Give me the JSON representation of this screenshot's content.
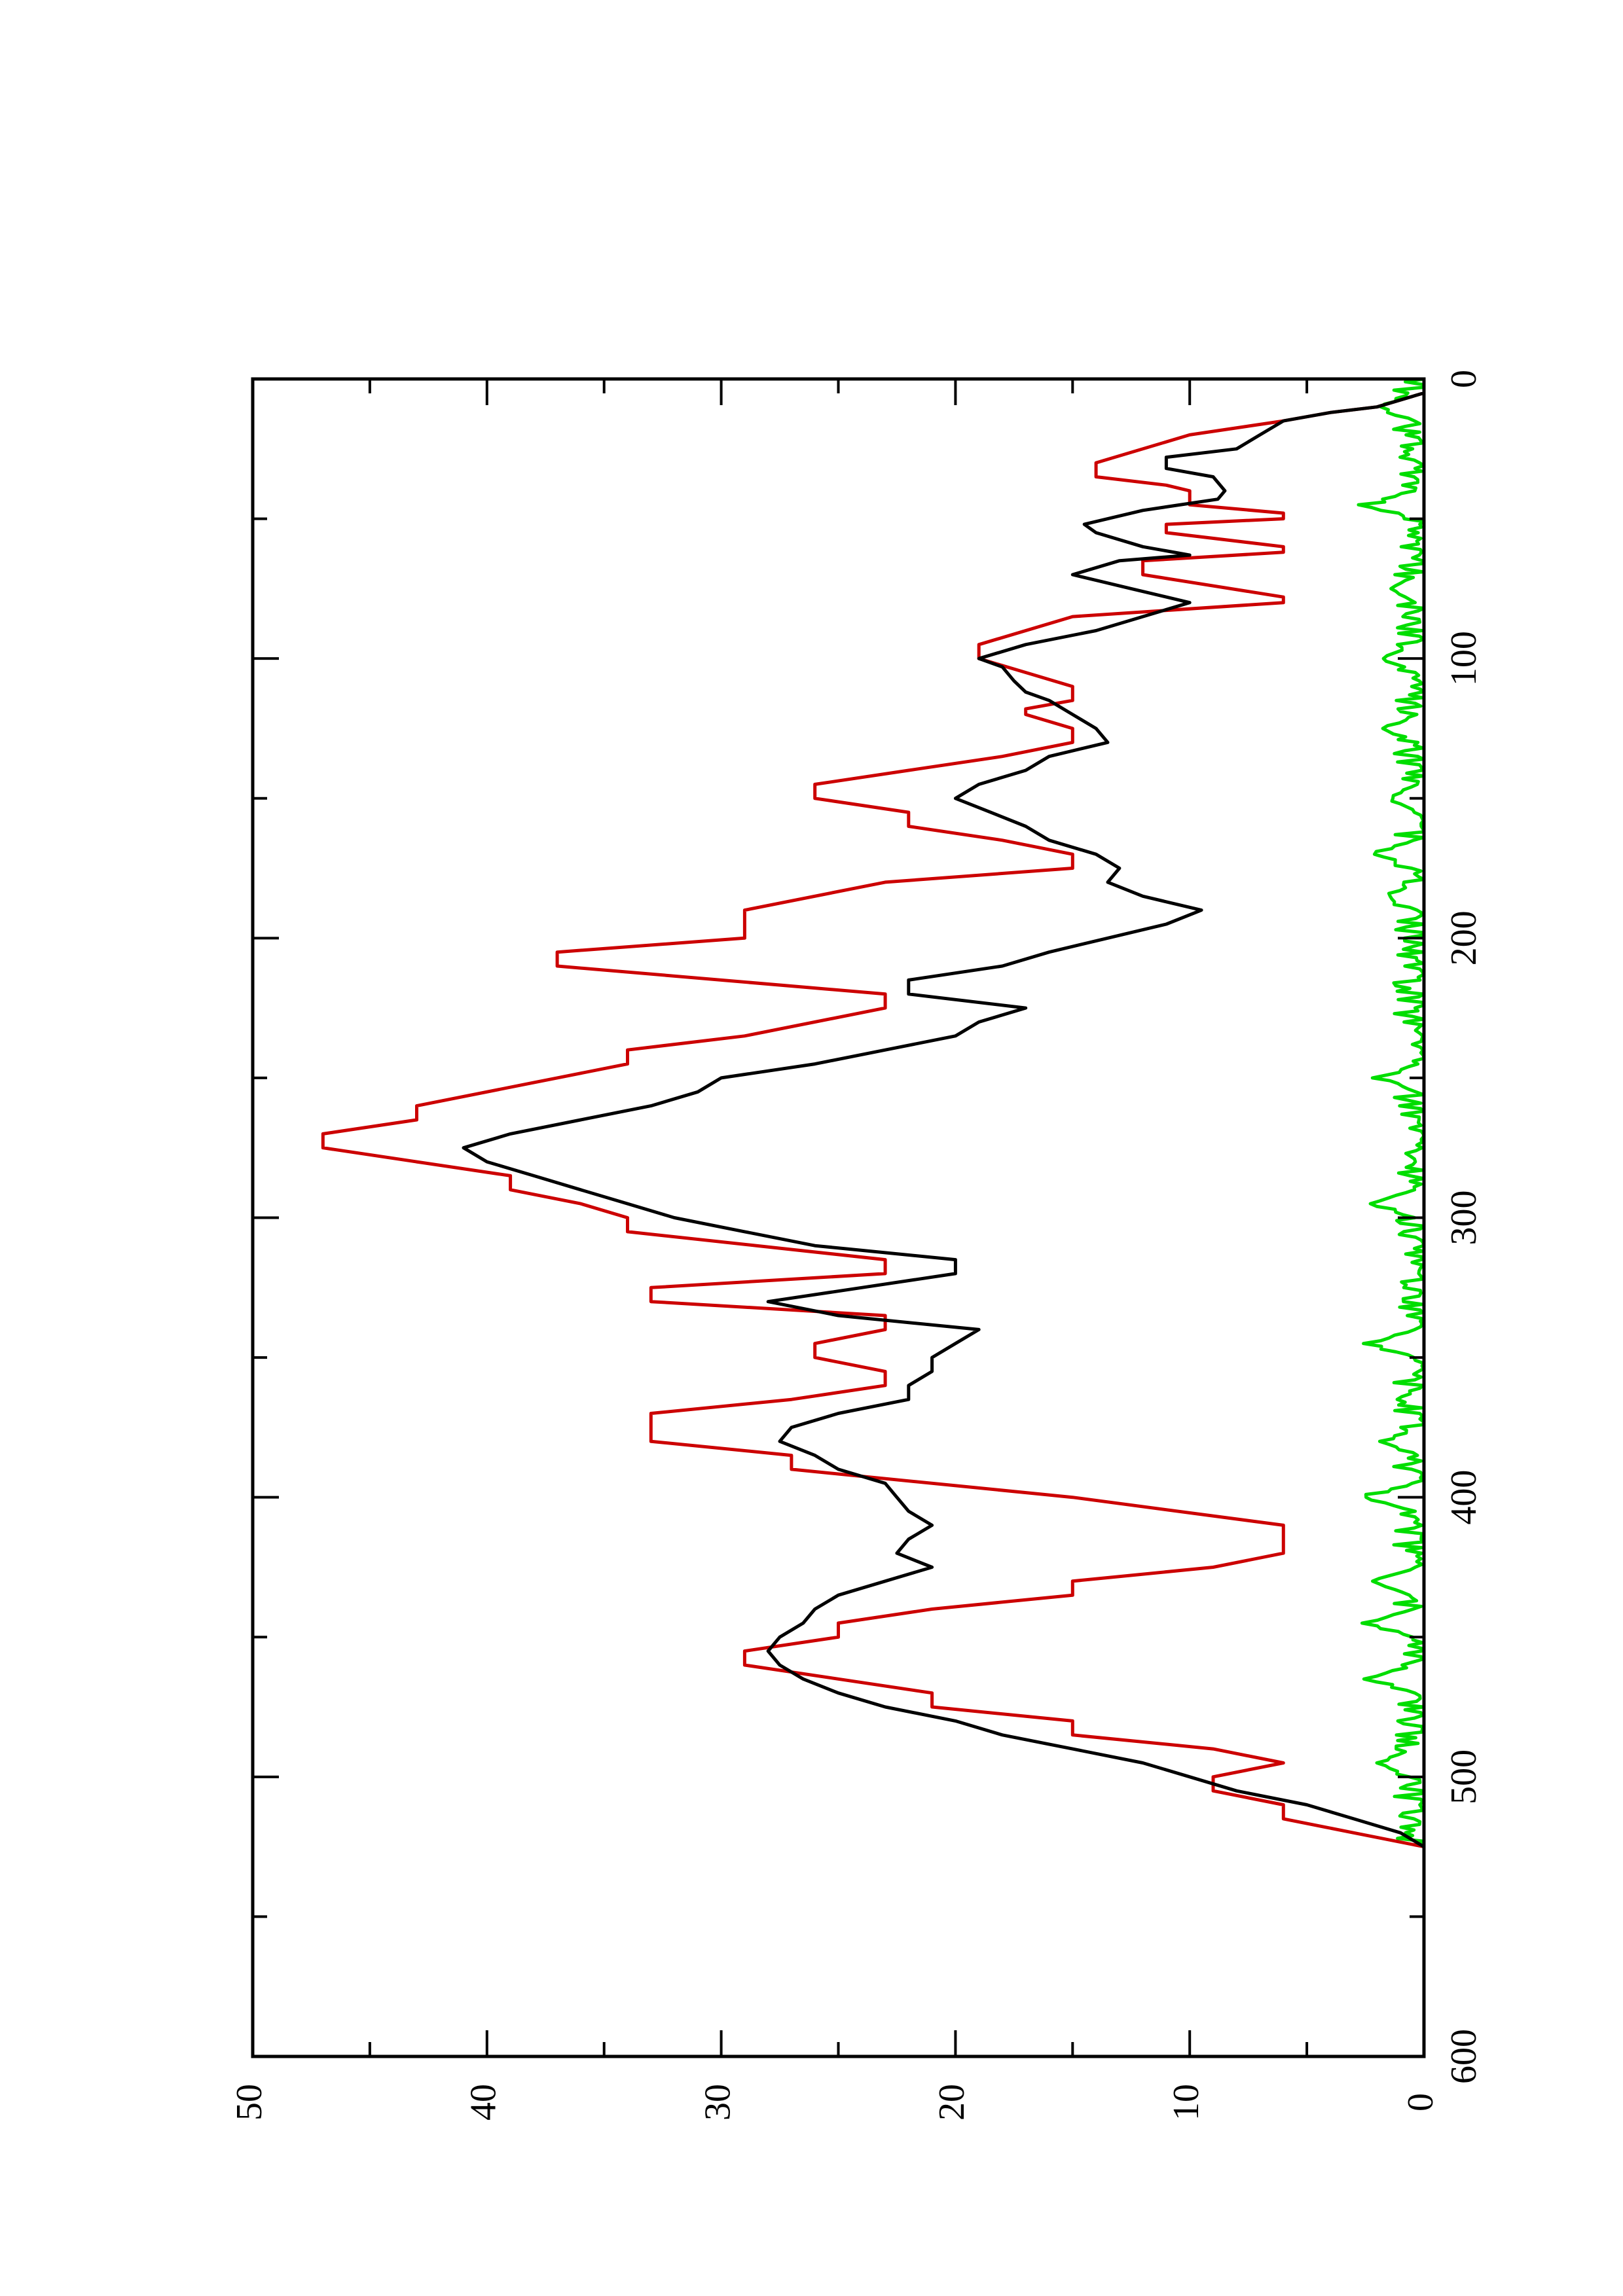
{
  "chart_data": {
    "type": "line",
    "title": "",
    "xlabel": "",
    "ylabel": "",
    "orientation": "rotated-90-clockwise",
    "xlim": [
      0,
      600
    ],
    "ylim": [
      0,
      50
    ],
    "x_ticks": [
      0,
      100,
      200,
      300,
      400,
      500,
      600
    ],
    "x_minor_ticks": [
      50,
      150,
      250,
      350,
      450,
      550
    ],
    "y_ticks": [
      0,
      10,
      20,
      30,
      40,
      50
    ],
    "y_minor_ticks": [
      5,
      15,
      25,
      35,
      45
    ],
    "grid": false,
    "legend": "none",
    "series": [
      {
        "color": "#cc0000",
        "step": true,
        "points": [
          [
            0,
            0
          ],
          [
            5,
            0
          ],
          [
            10,
            2
          ],
          [
            12,
            4
          ],
          [
            15,
            6
          ],
          [
            20,
            10
          ],
          [
            30,
            14
          ],
          [
            35,
            14
          ],
          [
            38,
            11
          ],
          [
            40,
            10
          ],
          [
            45,
            10
          ],
          [
            48,
            6
          ],
          [
            50,
            6
          ],
          [
            52,
            11
          ],
          [
            55,
            11
          ],
          [
            60,
            6
          ],
          [
            62,
            6
          ],
          [
            65,
            12
          ],
          [
            70,
            12
          ],
          [
            78,
            6
          ],
          [
            80,
            6
          ],
          [
            85,
            15
          ],
          [
            95,
            19
          ],
          [
            100,
            19
          ],
          [
            105,
            17
          ],
          [
            110,
            15
          ],
          [
            115,
            15
          ],
          [
            118,
            17
          ],
          [
            120,
            17
          ],
          [
            125,
            15
          ],
          [
            130,
            15
          ],
          [
            135,
            18
          ],
          [
            140,
            22
          ],
          [
            145,
            26
          ],
          [
            150,
            26
          ],
          [
            155,
            22
          ],
          [
            160,
            22
          ],
          [
            165,
            18
          ],
          [
            170,
            15
          ],
          [
            175,
            15
          ],
          [
            180,
            23
          ],
          [
            190,
            29
          ],
          [
            200,
            29
          ],
          [
            205,
            37
          ],
          [
            210,
            37
          ],
          [
            220,
            23
          ],
          [
            225,
            23
          ],
          [
            235,
            29
          ],
          [
            240,
            34
          ],
          [
            245,
            34
          ],
          [
            250,
            37
          ],
          [
            260,
            43
          ],
          [
            265,
            43
          ],
          [
            270,
            47
          ],
          [
            275,
            47
          ],
          [
            280,
            43
          ],
          [
            285,
            39
          ],
          [
            290,
            39
          ],
          [
            295,
            36
          ],
          [
            300,
            34
          ],
          [
            305,
            34
          ],
          [
            315,
            23
          ],
          [
            320,
            23
          ],
          [
            325,
            33
          ],
          [
            330,
            33
          ],
          [
            335,
            23
          ],
          [
            340,
            23
          ],
          [
            345,
            26
          ],
          [
            350,
            26
          ],
          [
            355,
            23
          ],
          [
            360,
            23
          ],
          [
            365,
            27
          ],
          [
            370,
            33
          ],
          [
            380,
            33
          ],
          [
            385,
            27
          ],
          [
            390,
            27
          ],
          [
            400,
            15
          ],
          [
            410,
            6
          ],
          [
            420,
            6
          ],
          [
            425,
            9
          ],
          [
            430,
            15
          ],
          [
            435,
            15
          ],
          [
            440,
            21
          ],
          [
            445,
            25
          ],
          [
            450,
            25
          ],
          [
            455,
            29
          ],
          [
            460,
            29
          ],
          [
            465,
            25
          ],
          [
            470,
            21
          ],
          [
            475,
            21
          ],
          [
            480,
            15
          ],
          [
            485,
            15
          ],
          [
            490,
            9
          ],
          [
            495,
            6
          ],
          [
            500,
            9
          ],
          [
            505,
            9
          ],
          [
            510,
            6
          ],
          [
            515,
            6
          ],
          [
            520,
            3
          ],
          [
            525,
            0
          ]
        ]
      },
      {
        "color": "#000000",
        "step": false,
        "points": [
          [
            0,
            0
          ],
          [
            5,
            0
          ],
          [
            10,
            2
          ],
          [
            12,
            4
          ],
          [
            15,
            6
          ],
          [
            20,
            7
          ],
          [
            25,
            8
          ],
          [
            28,
            11
          ],
          [
            32,
            11
          ],
          [
            35,
            9
          ],
          [
            40,
            8.5
          ],
          [
            43,
            8.8
          ],
          [
            47,
            12
          ],
          [
            52,
            14.5
          ],
          [
            55,
            14
          ],
          [
            60,
            12
          ],
          [
            63,
            10
          ],
          [
            65,
            13
          ],
          [
            70,
            15
          ],
          [
            75,
            12.5
          ],
          [
            80,
            10
          ],
          [
            85,
            12
          ],
          [
            90,
            14
          ],
          [
            95,
            17
          ],
          [
            100,
            19
          ],
          [
            103,
            18
          ],
          [
            108,
            17.5
          ],
          [
            112,
            17
          ],
          [
            115,
            16
          ],
          [
            120,
            15
          ],
          [
            125,
            14
          ],
          [
            130,
            13.5
          ],
          [
            135,
            16
          ],
          [
            140,
            17
          ],
          [
            145,
            19
          ],
          [
            150,
            20
          ],
          [
            155,
            18.5
          ],
          [
            160,
            17
          ],
          [
            165,
            16
          ],
          [
            170,
            14
          ],
          [
            175,
            13
          ],
          [
            180,
            13.5
          ],
          [
            185,
            12
          ],
          [
            190,
            9.5
          ],
          [
            195,
            11
          ],
          [
            200,
            13.5
          ],
          [
            205,
            16
          ],
          [
            210,
            18
          ],
          [
            215,
            22
          ],
          [
            220,
            22
          ],
          [
            225,
            17
          ],
          [
            230,
            19
          ],
          [
            235,
            20
          ],
          [
            240,
            23
          ],
          [
            245,
            26
          ],
          [
            250,
            30
          ],
          [
            255,
            31
          ],
          [
            260,
            33
          ],
          [
            265,
            36
          ],
          [
            270,
            39
          ],
          [
            275,
            41
          ],
          [
            280,
            40
          ],
          [
            285,
            38
          ],
          [
            290,
            36
          ],
          [
            295,
            34
          ],
          [
            300,
            32
          ],
          [
            305,
            29
          ],
          [
            310,
            26
          ],
          [
            315,
            20
          ],
          [
            320,
            20
          ],
          [
            325,
            24
          ],
          [
            330,
            28
          ],
          [
            335,
            25
          ],
          [
            340,
            19
          ],
          [
            345,
            20
          ],
          [
            350,
            21
          ],
          [
            355,
            21
          ],
          [
            360,
            22
          ],
          [
            365,
            22
          ],
          [
            370,
            25
          ],
          [
            375,
            27
          ],
          [
            380,
            27.5
          ],
          [
            385,
            26
          ],
          [
            390,
            25
          ],
          [
            395,
            23
          ],
          [
            400,
            22.5
          ],
          [
            405,
            22
          ],
          [
            410,
            21
          ],
          [
            415,
            22
          ],
          [
            420,
            22.5
          ],
          [
            425,
            21
          ],
          [
            430,
            23
          ],
          [
            435,
            25
          ],
          [
            440,
            26
          ],
          [
            445,
            26.5
          ],
          [
            450,
            27.5
          ],
          [
            455,
            28
          ],
          [
            460,
            27.5
          ],
          [
            465,
            26.5
          ],
          [
            470,
            25
          ],
          [
            475,
            23
          ],
          [
            480,
            20
          ],
          [
            485,
            18
          ],
          [
            490,
            15
          ],
          [
            495,
            12
          ],
          [
            500,
            10
          ],
          [
            505,
            8
          ],
          [
            510,
            5
          ],
          [
            515,
            3
          ],
          [
            520,
            1
          ],
          [
            525,
            0
          ]
        ]
      },
      {
        "color": "#00dd00",
        "step": false,
        "seed": 7,
        "x_start": 0,
        "x_end": 525,
        "x_step": 1,
        "baseline": 0,
        "max": 3.5,
        "peaks": [
          [
            10,
            2.5
          ],
          [
            45,
            2.8
          ],
          [
            75,
            1.9
          ],
          [
            100,
            2.3
          ],
          [
            125,
            2.0
          ],
          [
            150,
            1.8
          ],
          [
            170,
            2.5
          ],
          [
            185,
            2.0
          ],
          [
            250,
            2.2
          ],
          [
            295,
            2.5
          ],
          [
            345,
            2.8
          ],
          [
            380,
            2.0
          ],
          [
            400,
            3.2
          ],
          [
            430,
            2.5
          ],
          [
            445,
            3.0
          ],
          [
            465,
            2.8
          ],
          [
            495,
            2.5
          ]
        ]
      }
    ]
  }
}
